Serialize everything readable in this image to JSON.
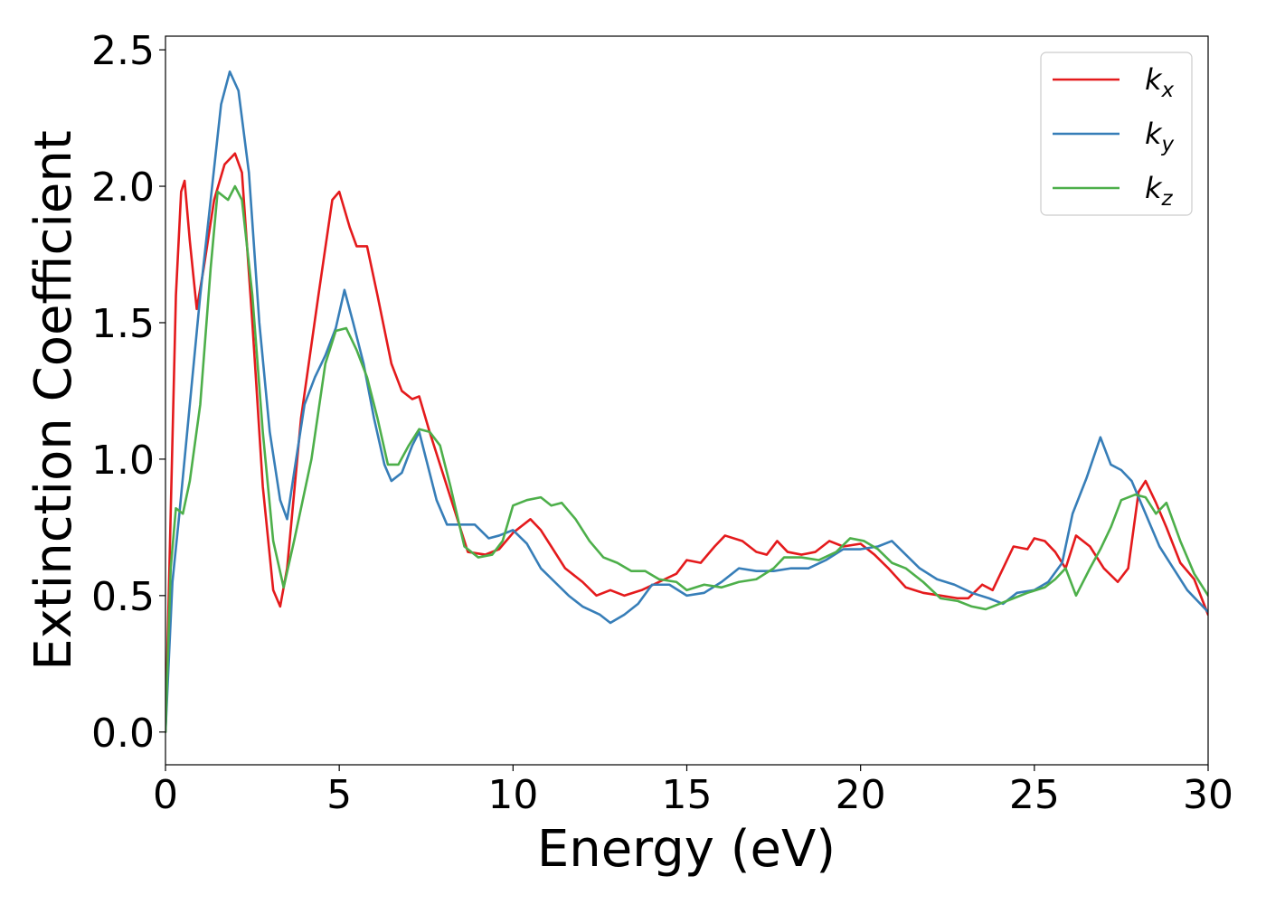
{
  "chart_data": {
    "type": "line",
    "xlabel": "Energy (eV)",
    "ylabel": "Extinction Coefficient",
    "xlim": [
      0,
      30
    ],
    "ylim": [
      -0.12,
      2.55
    ],
    "xticks": [
      0,
      5,
      10,
      15,
      20,
      25,
      30
    ],
    "xtick_labels": [
      "0",
      "5",
      "10",
      "15",
      "20",
      "25",
      "30"
    ],
    "yticks": [
      0.0,
      0.5,
      1.0,
      1.5,
      2.0,
      2.5
    ],
    "ytick_labels": [
      "0.0",
      "0.5",
      "1.0",
      "1.5",
      "2.0",
      "2.5"
    ],
    "grid": false,
    "legend_position": "top-right",
    "series": [
      {
        "name": "k",
        "subscript": "x",
        "color": "#e41a1c",
        "points": [
          [
            0,
            0
          ],
          [
            0.15,
            0.8
          ],
          [
            0.3,
            1.6
          ],
          [
            0.45,
            1.98
          ],
          [
            0.55,
            2.02
          ],
          [
            0.7,
            1.8
          ],
          [
            0.9,
            1.55
          ],
          [
            1.1,
            1.7
          ],
          [
            1.4,
            1.95
          ],
          [
            1.7,
            2.08
          ],
          [
            2.0,
            2.12
          ],
          [
            2.2,
            2.05
          ],
          [
            2.5,
            1.5
          ],
          [
            2.8,
            0.9
          ],
          [
            3.1,
            0.52
          ],
          [
            3.3,
            0.46
          ],
          [
            3.5,
            0.6
          ],
          [
            3.9,
            1.15
          ],
          [
            4.4,
            1.6
          ],
          [
            4.8,
            1.95
          ],
          [
            5.0,
            1.98
          ],
          [
            5.3,
            1.85
          ],
          [
            5.5,
            1.78
          ],
          [
            5.8,
            1.78
          ],
          [
            6.1,
            1.6
          ],
          [
            6.5,
            1.35
          ],
          [
            6.8,
            1.25
          ],
          [
            7.1,
            1.22
          ],
          [
            7.3,
            1.23
          ],
          [
            7.6,
            1.1
          ],
          [
            7.9,
            0.98
          ],
          [
            8.3,
            0.82
          ],
          [
            8.7,
            0.66
          ],
          [
            9.2,
            0.65
          ],
          [
            9.6,
            0.67
          ],
          [
            10.0,
            0.73
          ],
          [
            10.5,
            0.78
          ],
          [
            10.8,
            0.74
          ],
          [
            11.1,
            0.68
          ],
          [
            11.5,
            0.6
          ],
          [
            12.0,
            0.55
          ],
          [
            12.4,
            0.5
          ],
          [
            12.8,
            0.52
          ],
          [
            13.2,
            0.5
          ],
          [
            13.7,
            0.52
          ],
          [
            14.2,
            0.55
          ],
          [
            14.7,
            0.58
          ],
          [
            15.0,
            0.63
          ],
          [
            15.4,
            0.62
          ],
          [
            15.8,
            0.68
          ],
          [
            16.1,
            0.72
          ],
          [
            16.6,
            0.7
          ],
          [
            17.0,
            0.66
          ],
          [
            17.3,
            0.65
          ],
          [
            17.6,
            0.7
          ],
          [
            17.9,
            0.66
          ],
          [
            18.3,
            0.65
          ],
          [
            18.7,
            0.66
          ],
          [
            19.1,
            0.7
          ],
          [
            19.5,
            0.68
          ],
          [
            20.0,
            0.69
          ],
          [
            20.4,
            0.65
          ],
          [
            20.8,
            0.6
          ],
          [
            21.3,
            0.53
          ],
          [
            21.8,
            0.51
          ],
          [
            22.3,
            0.5
          ],
          [
            22.8,
            0.49
          ],
          [
            23.1,
            0.49
          ],
          [
            23.5,
            0.54
          ],
          [
            23.8,
            0.52
          ],
          [
            24.1,
            0.6
          ],
          [
            24.4,
            0.68
          ],
          [
            24.8,
            0.67
          ],
          [
            25.0,
            0.71
          ],
          [
            25.3,
            0.7
          ],
          [
            25.6,
            0.66
          ],
          [
            25.9,
            0.6
          ],
          [
            26.2,
            0.72
          ],
          [
            26.6,
            0.68
          ],
          [
            27.0,
            0.6
          ],
          [
            27.4,
            0.55
          ],
          [
            27.7,
            0.6
          ],
          [
            28.0,
            0.88
          ],
          [
            28.2,
            0.92
          ],
          [
            28.5,
            0.84
          ],
          [
            28.8,
            0.75
          ],
          [
            29.2,
            0.62
          ],
          [
            29.6,
            0.56
          ],
          [
            30.0,
            0.43
          ]
        ]
      },
      {
        "name": "k",
        "subscript": "y",
        "color": "#377eb8",
        "points": [
          [
            0,
            0
          ],
          [
            0.2,
            0.55
          ],
          [
            0.4,
            0.8
          ],
          [
            0.7,
            1.2
          ],
          [
            1.0,
            1.6
          ],
          [
            1.3,
            1.95
          ],
          [
            1.6,
            2.3
          ],
          [
            1.85,
            2.42
          ],
          [
            2.1,
            2.35
          ],
          [
            2.4,
            2.05
          ],
          [
            2.7,
            1.5
          ],
          [
            3.0,
            1.1
          ],
          [
            3.3,
            0.85
          ],
          [
            3.5,
            0.78
          ],
          [
            3.7,
            0.95
          ],
          [
            4.0,
            1.2
          ],
          [
            4.3,
            1.3
          ],
          [
            4.6,
            1.38
          ],
          [
            4.9,
            1.48
          ],
          [
            5.15,
            1.62
          ],
          [
            5.4,
            1.5
          ],
          [
            5.7,
            1.35
          ],
          [
            6.0,
            1.15
          ],
          [
            6.3,
            0.98
          ],
          [
            6.5,
            0.92
          ],
          [
            6.8,
            0.95
          ],
          [
            7.1,
            1.05
          ],
          [
            7.3,
            1.1
          ],
          [
            7.5,
            1.0
          ],
          [
            7.8,
            0.85
          ],
          [
            8.1,
            0.76
          ],
          [
            8.5,
            0.76
          ],
          [
            8.9,
            0.76
          ],
          [
            9.3,
            0.71
          ],
          [
            9.6,
            0.72
          ],
          [
            10.0,
            0.74
          ],
          [
            10.4,
            0.69
          ],
          [
            10.8,
            0.6
          ],
          [
            11.2,
            0.55
          ],
          [
            11.6,
            0.5
          ],
          [
            12.0,
            0.46
          ],
          [
            12.5,
            0.43
          ],
          [
            12.8,
            0.4
          ],
          [
            13.2,
            0.43
          ],
          [
            13.6,
            0.47
          ],
          [
            14.0,
            0.54
          ],
          [
            14.5,
            0.54
          ],
          [
            15.0,
            0.5
          ],
          [
            15.5,
            0.51
          ],
          [
            16.0,
            0.55
          ],
          [
            16.5,
            0.6
          ],
          [
            17.0,
            0.59
          ],
          [
            17.5,
            0.59
          ],
          [
            18.0,
            0.6
          ],
          [
            18.5,
            0.6
          ],
          [
            19.0,
            0.63
          ],
          [
            19.5,
            0.67
          ],
          [
            20.0,
            0.67
          ],
          [
            20.5,
            0.68
          ],
          [
            20.9,
            0.7
          ],
          [
            21.3,
            0.65
          ],
          [
            21.7,
            0.6
          ],
          [
            22.2,
            0.56
          ],
          [
            22.7,
            0.54
          ],
          [
            23.2,
            0.51
          ],
          [
            23.7,
            0.49
          ],
          [
            24.1,
            0.47
          ],
          [
            24.5,
            0.51
          ],
          [
            25.0,
            0.52
          ],
          [
            25.4,
            0.55
          ],
          [
            25.8,
            0.62
          ],
          [
            26.1,
            0.8
          ],
          [
            26.5,
            0.93
          ],
          [
            26.9,
            1.08
          ],
          [
            27.2,
            0.98
          ],
          [
            27.5,
            0.96
          ],
          [
            27.8,
            0.92
          ],
          [
            28.2,
            0.8
          ],
          [
            28.6,
            0.68
          ],
          [
            29.0,
            0.6
          ],
          [
            29.4,
            0.52
          ],
          [
            30.0,
            0.44
          ]
        ]
      },
      {
        "name": "k",
        "subscript": "z",
        "color": "#4daf4a",
        "points": [
          [
            0,
            0
          ],
          [
            0.15,
            0.6
          ],
          [
            0.3,
            0.82
          ],
          [
            0.5,
            0.8
          ],
          [
            0.7,
            0.92
          ],
          [
            1.0,
            1.2
          ],
          [
            1.3,
            1.7
          ],
          [
            1.5,
            1.98
          ],
          [
            1.8,
            1.95
          ],
          [
            2.0,
            2.0
          ],
          [
            2.2,
            1.95
          ],
          [
            2.5,
            1.6
          ],
          [
            2.8,
            1.1
          ],
          [
            3.1,
            0.7
          ],
          [
            3.4,
            0.53
          ],
          [
            3.7,
            0.7
          ],
          [
            4.2,
            1.0
          ],
          [
            4.6,
            1.35
          ],
          [
            4.9,
            1.47
          ],
          [
            5.2,
            1.48
          ],
          [
            5.5,
            1.4
          ],
          [
            5.8,
            1.3
          ],
          [
            6.1,
            1.15
          ],
          [
            6.4,
            0.98
          ],
          [
            6.7,
            0.98
          ],
          [
            7.0,
            1.05
          ],
          [
            7.3,
            1.11
          ],
          [
            7.6,
            1.1
          ],
          [
            7.9,
            1.05
          ],
          [
            8.2,
            0.9
          ],
          [
            8.6,
            0.68
          ],
          [
            9.0,
            0.64
          ],
          [
            9.4,
            0.65
          ],
          [
            9.7,
            0.7
          ],
          [
            10.0,
            0.83
          ],
          [
            10.4,
            0.85
          ],
          [
            10.8,
            0.86
          ],
          [
            11.1,
            0.83
          ],
          [
            11.4,
            0.84
          ],
          [
            11.8,
            0.78
          ],
          [
            12.2,
            0.7
          ],
          [
            12.6,
            0.64
          ],
          [
            13.0,
            0.62
          ],
          [
            13.4,
            0.59
          ],
          [
            13.8,
            0.59
          ],
          [
            14.2,
            0.56
          ],
          [
            14.7,
            0.55
          ],
          [
            15.0,
            0.52
          ],
          [
            15.5,
            0.54
          ],
          [
            16.0,
            0.53
          ],
          [
            16.5,
            0.55
          ],
          [
            17.0,
            0.56
          ],
          [
            17.5,
            0.6
          ],
          [
            17.8,
            0.64
          ],
          [
            18.3,
            0.64
          ],
          [
            18.8,
            0.63
          ],
          [
            19.3,
            0.66
          ],
          [
            19.7,
            0.71
          ],
          [
            20.1,
            0.7
          ],
          [
            20.5,
            0.67
          ],
          [
            20.9,
            0.62
          ],
          [
            21.3,
            0.6
          ],
          [
            21.8,
            0.55
          ],
          [
            22.3,
            0.49
          ],
          [
            22.8,
            0.48
          ],
          [
            23.2,
            0.46
          ],
          [
            23.6,
            0.45
          ],
          [
            24.0,
            0.47
          ],
          [
            24.4,
            0.49
          ],
          [
            24.8,
            0.51
          ],
          [
            25.3,
            0.53
          ],
          [
            25.6,
            0.56
          ],
          [
            25.9,
            0.6
          ],
          [
            26.2,
            0.5
          ],
          [
            26.6,
            0.6
          ],
          [
            26.9,
            0.67
          ],
          [
            27.2,
            0.75
          ],
          [
            27.5,
            0.85
          ],
          [
            27.9,
            0.87
          ],
          [
            28.2,
            0.86
          ],
          [
            28.5,
            0.8
          ],
          [
            28.8,
            0.84
          ],
          [
            29.2,
            0.7
          ],
          [
            29.6,
            0.58
          ],
          [
            30.0,
            0.5
          ]
        ]
      }
    ]
  }
}
